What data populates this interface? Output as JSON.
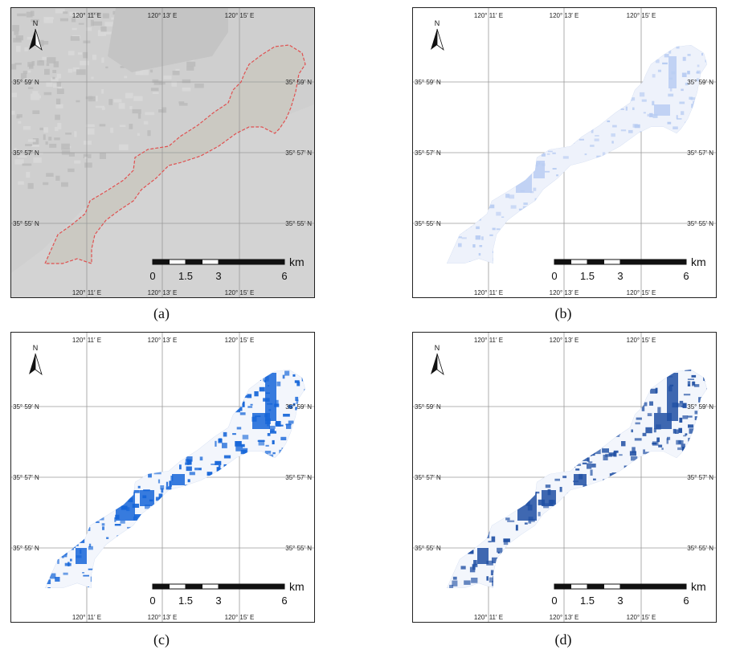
{
  "panels": [
    {
      "id": "a",
      "caption": "(a)",
      "style": "imagery",
      "boundary_color": "#e05050"
    },
    {
      "id": "b",
      "caption": "(b)",
      "style": "pale",
      "fill_color": "#b8ccf2"
    },
    {
      "id": "c",
      "caption": "(c)",
      "style": "bright",
      "fill_color": "#1565d8"
    },
    {
      "id": "d",
      "caption": "(d)",
      "style": "dark",
      "fill_color": "#1f4fa3"
    }
  ],
  "grid_labels": {
    "lon": [
      "120° 11′ E",
      "120° 13′ E",
      "120° 15′ E"
    ],
    "lat": [
      "35° 59′ N",
      "35° 57′ N",
      "35° 55′ N"
    ]
  },
  "scale_bar": {
    "ticks": [
      "0",
      "1.5",
      "3",
      "6"
    ],
    "unit": "km"
  },
  "north_arrow": {
    "label": "N"
  },
  "colors": {
    "grid": "#9a9a9a",
    "imagery_bg": "#cfcfcf"
  }
}
